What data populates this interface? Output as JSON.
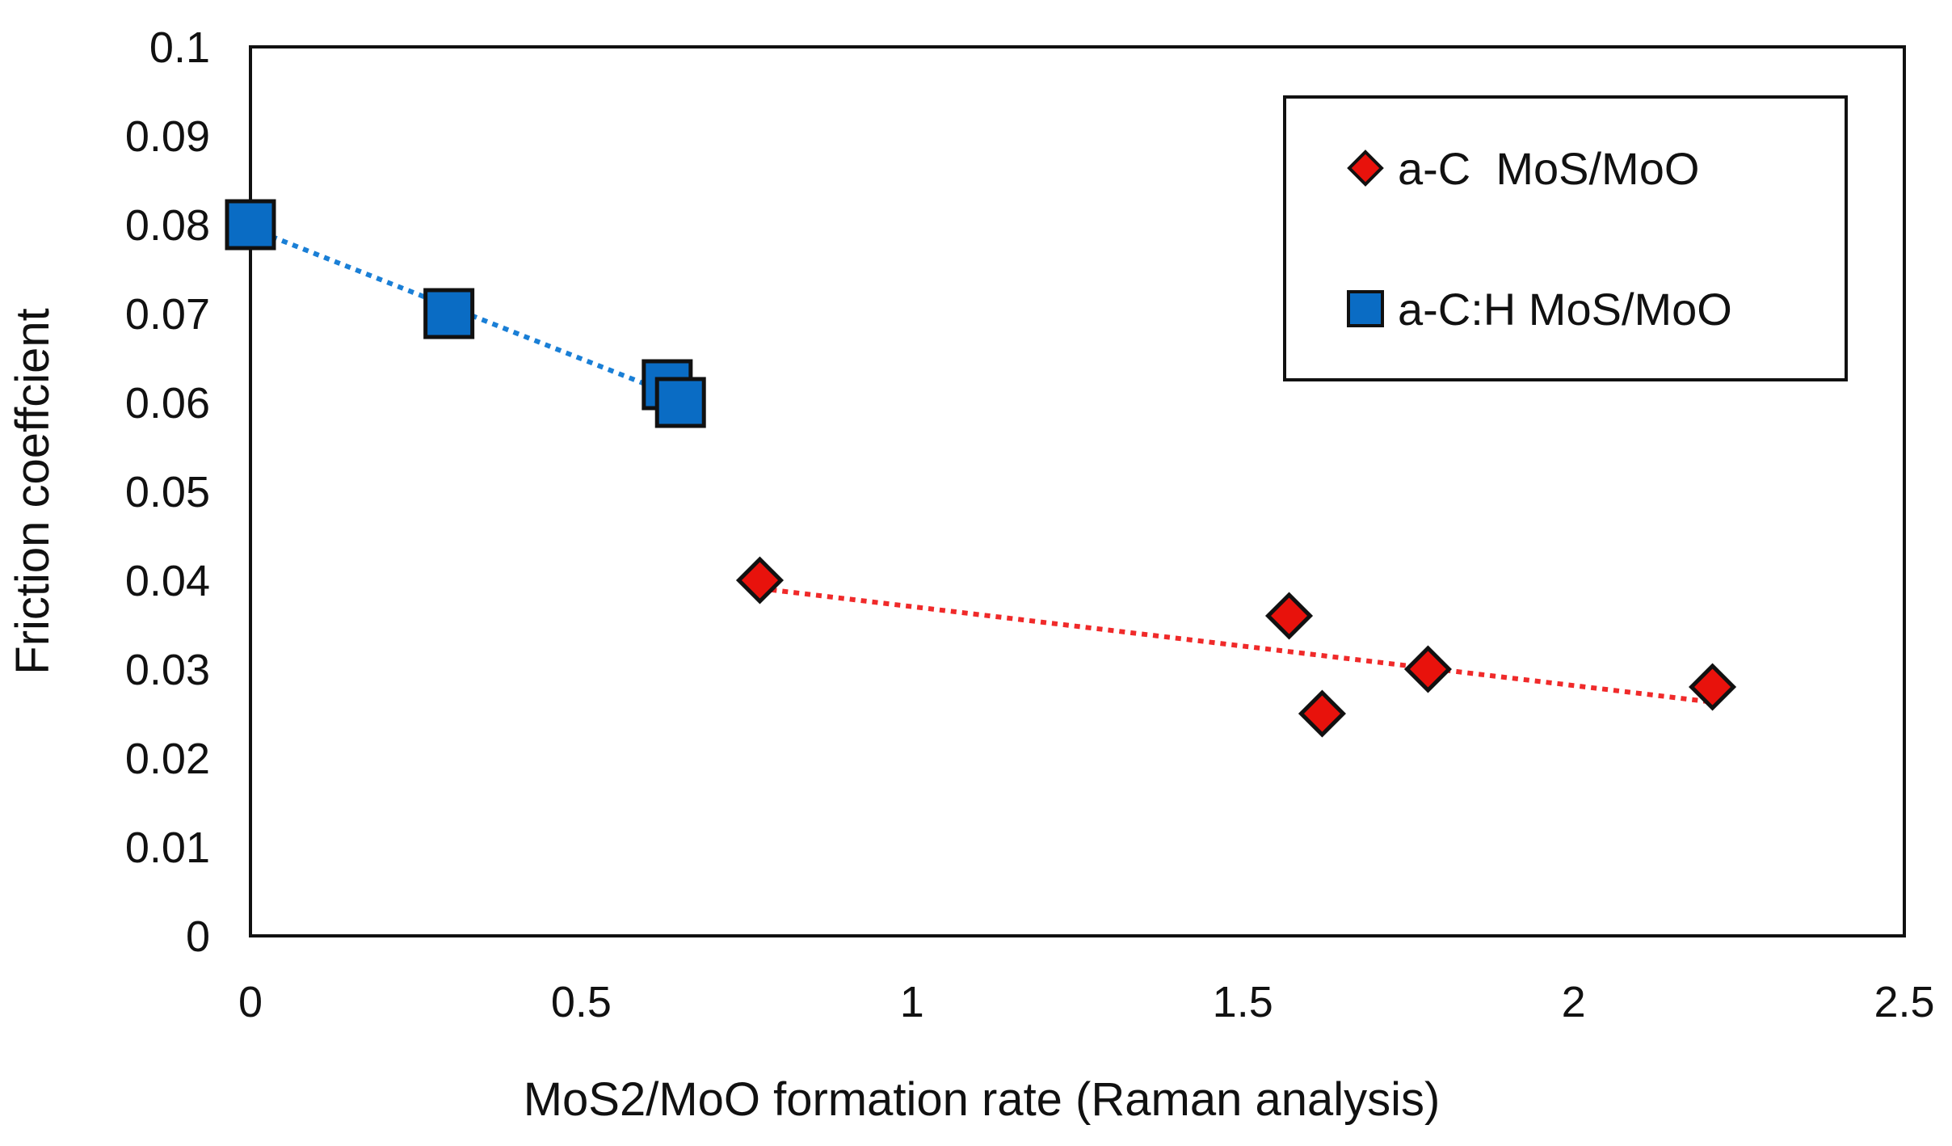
{
  "chart_data": {
    "type": "scatter",
    "title": "",
    "xlabel": "MoS2/MoO formation rate (Raman analysis)",
    "ylabel": "Friction coeffcient",
    "xlim": [
      0,
      2.5
    ],
    "ylim": [
      0,
      0.1
    ],
    "x_ticks": [
      "0",
      "0.5",
      "1",
      "1.5",
      "2",
      "2.5"
    ],
    "y_ticks": [
      "0",
      "0.01",
      "0.02",
      "0.03",
      "0.04",
      "0.05",
      "0.06",
      "0.07",
      "0.08",
      "0.09",
      "0.1"
    ],
    "legend_position": "top-right",
    "grid": false,
    "series": [
      {
        "name": "a-C  MoS/MoO",
        "marker": "diamond",
        "color": "#e8120c",
        "trendline": "linear",
        "trendline_color": "#f02a2a",
        "x": [
          0.77,
          1.57,
          1.62,
          1.78,
          2.21
        ],
        "y": [
          0.04,
          0.036,
          0.025,
          0.03,
          0.028
        ]
      },
      {
        "name": "a-C:H MoS/MoO",
        "marker": "square",
        "color": "#0a6cc4",
        "trendline": "linear",
        "trendline_color": "#1a7fd6",
        "x": [
          0.0,
          0.3,
          0.63,
          0.65
        ],
        "y": [
          0.08,
          0.07,
          0.062,
          0.06
        ]
      }
    ]
  }
}
